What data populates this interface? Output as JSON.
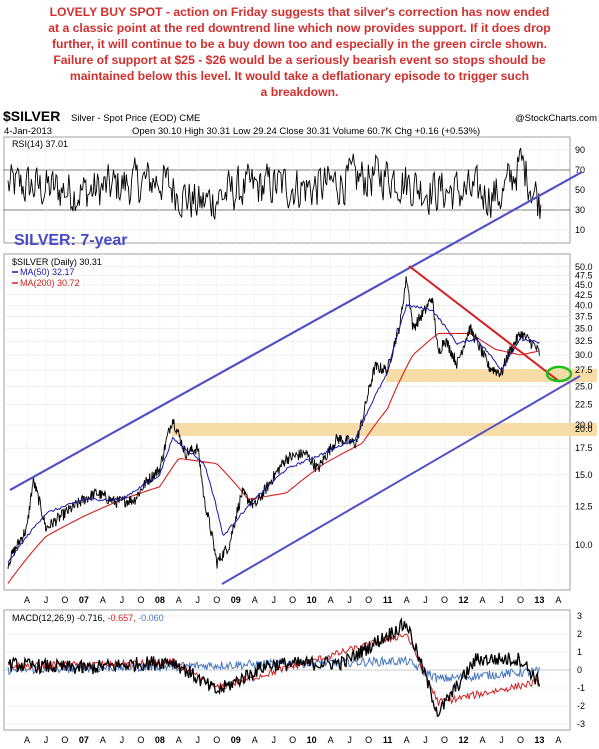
{
  "annotation": {
    "lines": [
      "LOVELY BUY SPOT - action on Friday suggests that silver's correction has now ended",
      "at a classic point at the red downtrend line which now provides support. If it does drop",
      "further, it will continue to be a buy down too and especially in the green circle shown.",
      "Failure of support at $25 - $26 would be a seriously bearish event so stops should be",
      "maintained below this level. It would take a deflationary episode to trigger such",
      "a breakdown."
    ]
  },
  "header": {
    "symbol": "$SILVER",
    "name": "Silver - Spot Price (EOD) CME",
    "copyright": "@StockCharts.com",
    "date": "4-Jan-2013",
    "open_label": "Open",
    "open": "30.10",
    "high_label": "High",
    "high": "30.31",
    "low_label": "Low",
    "low": "29.24",
    "close_label": "Close",
    "close": "30.31",
    "volume_label": "Volume",
    "volume": "60.7K",
    "chg_label": "Chg",
    "chg": "+0.16 (+0.53%)"
  },
  "colors": {
    "price": "#000000",
    "ma50": "#1a1aa8",
    "ma200": "#d42020",
    "channel": "#5050c8",
    "downtrend": "#d42020",
    "support_band": "#f8dca8",
    "circle": "#18c018",
    "silver_label": "#4a4ac8"
  },
  "chart_data": [
    {
      "type": "line",
      "title": "RSI(14) 37.01",
      "ylim": [
        0,
        100
      ],
      "yticks": [
        "10",
        "30",
        "50",
        "70",
        "90"
      ],
      "grid": true,
      "series": [
        {
          "name": "RSI(14) 37.01",
          "x": [
            "2006-01",
            "2006-07",
            "2007-01",
            "2007-07",
            "2008-01",
            "2008-07",
            "2009-01",
            "2009-07",
            "2010-01",
            "2010-07",
            "2011-01",
            "2011-07",
            "2012-01",
            "2012-07",
            "2012-10",
            "2013-01"
          ],
          "values": [
            55,
            52,
            48,
            55,
            60,
            35,
            50,
            55,
            52,
            60,
            65,
            50,
            48,
            45,
            78,
            37
          ]
        }
      ]
    },
    {
      "type": "line",
      "title": "$SILVER (Daily) 30.31",
      "ylabel": "",
      "log_scale": true,
      "ylim": [
        7.7,
        52
      ],
      "yticks": [
        "10.0",
        "12.5",
        "15.0",
        "17.5",
        "20.0",
        "22.5",
        "25.0",
        "27.5",
        "30.0",
        "32.5",
        "35.0",
        "37.5",
        "40.0",
        "42.5",
        "45.0",
        "47.5",
        "50.0"
      ],
      "x_labels": [
        "A",
        "J",
        "O",
        "07",
        "A",
        "J",
        "O",
        "08",
        "A",
        "J",
        "O",
        "09",
        "A",
        "J",
        "O",
        "10",
        "A",
        "J",
        "O",
        "11",
        "A",
        "J",
        "O",
        "12",
        "A",
        "J",
        "O",
        "13",
        "A"
      ],
      "series": [
        {
          "name": "$SILVER (Daily) 30.31",
          "x": [
            "2006-01",
            "2006-04",
            "2006-05",
            "2006-07",
            "2006-10",
            "2007-01",
            "2007-03",
            "2007-06",
            "2007-09",
            "2007-11",
            "2008-01",
            "2008-03",
            "2008-05",
            "2008-07",
            "2008-08",
            "2008-09",
            "2008-10",
            "2008-12",
            "2009-02",
            "2009-04",
            "2009-06",
            "2009-09",
            "2009-12",
            "2010-02",
            "2010-05",
            "2010-08",
            "2010-09",
            "2010-11",
            "2011-01",
            "2011-03",
            "2011-04",
            "2011-05",
            "2011-07",
            "2011-08",
            "2011-09",
            "2011-10",
            "2011-12",
            "2012-02",
            "2012-05",
            "2012-07",
            "2012-08",
            "2012-10",
            "2012-12",
            "2013-01"
          ],
          "values": [
            9,
            11,
            14.5,
            11,
            12,
            13,
            13.5,
            12.8,
            13,
            14.5,
            15.5,
            20.8,
            17,
            17.5,
            13,
            11,
            9,
            10,
            13.5,
            12.5,
            14,
            16.5,
            17,
            15.5,
            18.5,
            18,
            20.5,
            28,
            27.5,
            36,
            47,
            35,
            39,
            42,
            30,
            33,
            28.5,
            35,
            28,
            27,
            30,
            34,
            32,
            30.31
          ]
        },
        {
          "name": "MA(50) 32.17",
          "x": [
            "2006-01",
            "2006-07",
            "2007-01",
            "2007-07",
            "2008-01",
            "2008-03",
            "2008-08",
            "2008-11",
            "2009-03",
            "2009-09",
            "2010-03",
            "2010-08",
            "2011-01",
            "2011-04",
            "2011-08",
            "2011-12",
            "2012-03",
            "2012-07",
            "2012-10",
            "2013-01"
          ],
          "values": [
            9,
            12,
            13,
            13,
            15,
            18.5,
            16,
            10.5,
            12.5,
            15.5,
            17,
            18.5,
            27,
            40,
            39,
            32,
            33,
            27.5,
            33,
            32.17
          ]
        },
        {
          "name": "MA(200) 30.72",
          "x": [
            "2006-01",
            "2006-07",
            "2007-01",
            "2007-07",
            "2008-01",
            "2008-04",
            "2008-10",
            "2009-03",
            "2009-09",
            "2010-03",
            "2010-09",
            "2011-01",
            "2011-05",
            "2011-09",
            "2012-02",
            "2012-06",
            "2012-10",
            "2013-01"
          ],
          "values": [
            8,
            10.5,
            11.8,
            13,
            14,
            16.5,
            16,
            13,
            13.5,
            16,
            18,
            22,
            30,
            34,
            34,
            31,
            30,
            30.72
          ]
        }
      ]
    },
    {
      "type": "line",
      "title": "MACD(12,26,9) -0.716, -0.657, -0.060",
      "ylim": [
        -3,
        3
      ],
      "yticks": [
        "-3",
        "-2",
        "-1",
        "0",
        "1",
        "2",
        "3"
      ],
      "series": [
        {
          "name": "MACD(12,26,9)",
          "x": [
            "2006-01",
            "2007-01",
            "2008-03",
            "2008-10",
            "2009-06",
            "2010-06",
            "2011-04",
            "2011-09",
            "2012-03",
            "2012-10",
            "2013-01"
          ],
          "values": [
            0.3,
            0.1,
            0.5,
            -1.2,
            0.3,
            0.4,
            2.6,
            -2.4,
            0.6,
            0.6,
            -0.716
          ]
        },
        {
          "name": "-0.657",
          "x": [
            "2006-01",
            "2008-03",
            "2008-10",
            "2011-04",
            "2011-09",
            "2013-01"
          ],
          "values": [
            0.2,
            0.4,
            -1.0,
            2.0,
            -1.8,
            -0.657
          ]
        },
        {
          "name": "-0.060",
          "x": [
            "2006-01",
            "2011-04",
            "2011-09",
            "2013-01"
          ],
          "values": [
            0,
            0.5,
            -0.5,
            -0.06
          ]
        }
      ]
    }
  ],
  "price_panel": {
    "silver_label": "SILVER: 7-year",
    "legend_price": "$SILVER (Daily) 30.31",
    "legend_ma50": "MA(50) 32.17",
    "legend_ma200": "MA(200) 30.72",
    "label_20": "20.0",
    "label_27": "27.5"
  },
  "rsi_panel": {
    "legend": "RSI(14) 37.01"
  },
  "macd_panel": {
    "legend_a": "MACD(12,26,9) -0.716,",
    "legend_b": "-0.657,",
    "legend_c": "-0.060"
  }
}
